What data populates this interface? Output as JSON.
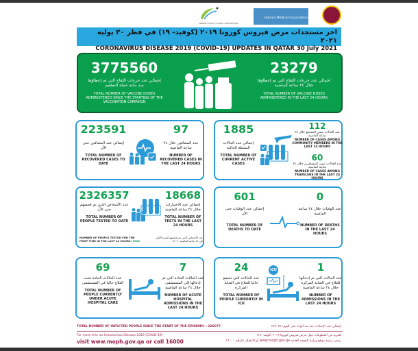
{
  "header": {
    "phcc_logo_text": "PRIMARY HEALTH CARE CORPORATION",
    "hmc_logo_text": "Hamad Medical Corporation",
    "title_ar": "اخر مستجدات مرض فيروس كورونا ٢٠١٩ (كوفيد- ١٩) في قطر ٣٠ يوليه ٢٠٢١",
    "title_en": "CORONAVIRUS DISEASE 2019 (COVID-19) UPDATES IN QATAR 30 July 2021"
  },
  "vaccine": {
    "total": {
      "value": "3775560",
      "ar": "إجمالي عدد جرعات اللقاح التي تم إعطاؤها منذ بداية حملة التطعيم",
      "en": "TOTAL NUMBER OF VACCINE DOSES ADMINISTERED SINCE THE STARTING OF THE VACCINATION CAMPAIGN"
    },
    "last24": {
      "value": "23279",
      "ar": "إجمالي عدد جرعات اللقاح التي تم إعطاؤها خلال ٢٤ ساعة الماضية",
      "en": "TOTAL NUMBER OF VACCINE DOSES ADMINISTERED IN THE LAST 24 HOURS"
    }
  },
  "recovered": {
    "total": {
      "value": "223591",
      "ar": "إجمالي عدد المتعافين حتى الآن",
      "en": "TOTAL NUMBER OF RECOVERED CASES TO DATE"
    },
    "last24": {
      "value": "97",
      "ar": "عدد المتعافين خلال ٢٤ ساعة الماضية",
      "en": "NUMBER OF RECOVERED CASES IN THE LAST 24 HOURS"
    }
  },
  "active": {
    "total": {
      "value": "1885",
      "ar": "إجمالي عدد الحالات النشطة الحالية",
      "en": "TOTAL NUMBER OF CURRENT ACTIVE CASES"
    },
    "community": {
      "value": "112",
      "ar": "عدد الحالات ضمن المجتمع خلال ٢٤ ساعة الماضية",
      "en": "NUMBER OF CASES AMONG COMMUNITY MEMBERS IN THE LAST 24 HOURS"
    },
    "travelers": {
      "value": "60",
      "ar": "عدد الحالات ضمن المسافرين خلال ٢٤ ساعة الماضية",
      "en": "NUMBER OF CASES AMONG TRAVELERS IN THE LAST 24 HOURS"
    }
  },
  "tests": {
    "total": {
      "value": "2326357",
      "ar": "عدد الأشخاص الذين تم فحصهم حتى الآن",
      "en": "TOTAL NUMBER OF PEOPLE TESTED TO DATE"
    },
    "last24": {
      "value": "18668",
      "ar": "إجمالي عدد الاختبارات خلال ٢٤ ساعة الماضية",
      "en": "TOTAL NUMBER OF TESTS IN THE LAST 24 HOURS"
    },
    "first_time_en": "NUMBER OF PEOPLE TESTED FOR THE FIRST TIME IN THE LAST 24 HOURS:",
    "first_time_value": "5606",
    "first_time_ar": "عدد الأشخاص الذين تم فحصهم للمرة الأولى في ٢٤ ساعة الماضية: ٥٦٠٦"
  },
  "deaths": {
    "total": {
      "value": "601",
      "ar": "إجمالي عدد الوفيات حتى الآن",
      "en": "TOTAL NUMBER OF DEATHS TO DATE"
    },
    "last24": {
      "value": "0",
      "ar": "عدد الوفيات خلال ٢٤ ساعة الماضية",
      "en": "NUMBER OF DEATHS IN THE LAST 24 HOURS"
    }
  },
  "acute": {
    "total": {
      "value": "69",
      "ar": "عدد الحالات الحادة تحت العلاج حاليا في المستشفى",
      "en": "TOTAL NUMBER OF PEOPLE CURRENTLY UNDER ACUTE HOSPITAL CARE"
    },
    "last24": {
      "value": "7",
      "ar": "عدد الحالات الحادة التي تم إدخالها إلى المستشفى خلال ٢٤ ساعة الماضية",
      "en": "NUMBER OF ACUTE HOSPITAL ADMISSIONS IN THE LAST 24 HOURS"
    }
  },
  "icu": {
    "icu_label": "ICU",
    "total": {
      "value": "24",
      "ar": "عدد الحالات التي تخضع حاليا للعلاج في العناية المركزة",
      "en": "TOTAL NUMBER OF PEOPLE CURRENTLY IN ICU"
    },
    "last24": {
      "value": "1",
      "ar": "عدد الحالات التي تم إدخالها للعلاج في العناية المركزة خلال ٢٤ ساعة الماضية",
      "en": "NUMBER OF ADMISSIONS IN THE LAST 24 HOURS"
    }
  },
  "footer": {
    "infected_en": "TOTAL NUMBER OF INFECTED PEOPLE SINCE THE START OF THE EPIDEMIC : 226077",
    "infected_ar": "إجمالي عدد الإصابات منذ بدء الوباء حتى اليوم: ٢٢٦٠٧٧",
    "more_info_en": "For more info. on Coronavirus Disease 2019 (COVID-19)",
    "visit_en": "visit www.moph.gov.qa or call 16000",
    "more_info_ar": "للمزيد من المعلومات حول مرض فيروس كورونا ٢٠١٩ (كوفيد- ١٩)",
    "visit_ar": "يرجى زيارة موقع وزارة الصحة العامة www.moph.gov.qa أو الاتصال بالرقم ١٦٠٠٠"
  },
  "colors": {
    "accent_blue": "#29a8e0",
    "green": "#0a9f4c",
    "number_green": "#10a050",
    "card_border": "#2b9ad6",
    "footer_red": "#9a1e4a"
  }
}
